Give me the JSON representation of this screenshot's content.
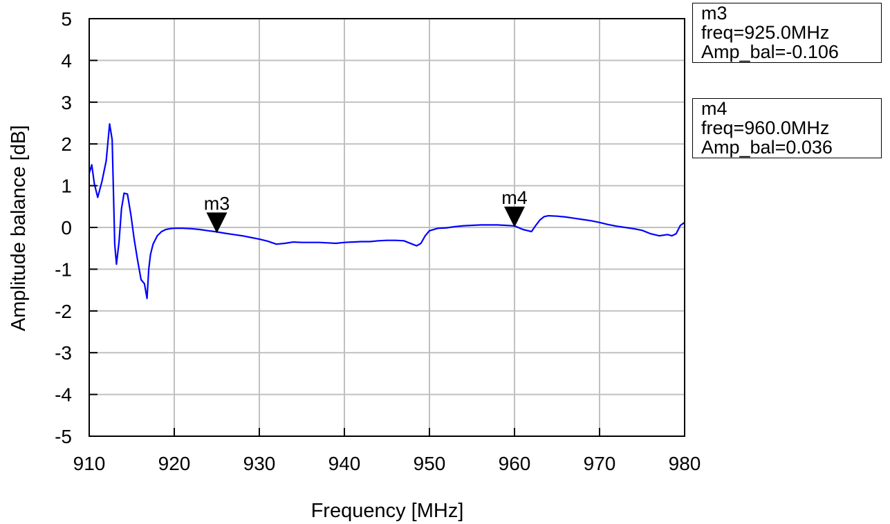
{
  "chart_data": {
    "type": "line",
    "title": "",
    "xlabel": "Frequency [MHz]",
    "ylabel": "Amplitude balance [dB]",
    "xlim": [
      910,
      980
    ],
    "ylim": [
      -5,
      5
    ],
    "x_ticks": [
      910,
      920,
      930,
      940,
      950,
      960,
      970,
      980
    ],
    "y_ticks": [
      -5,
      -4,
      -3,
      -2,
      -1,
      0,
      1,
      2,
      3,
      4,
      5
    ],
    "grid": true,
    "line_color": "#0000ff",
    "series": [
      {
        "x": [
          910.0,
          910.3,
          910.6,
          911.0,
          911.5,
          912.0,
          912.4,
          912.7,
          913.0,
          913.2,
          913.5,
          913.8,
          914.1,
          914.5,
          914.9,
          915.3,
          915.7,
          916.1,
          916.5,
          916.8,
          917.0,
          917.2,
          917.5,
          918.0,
          918.5,
          919.0,
          919.5,
          920.0,
          921.0,
          922.0,
          923.0,
          924.0,
          925.0,
          926.0,
          927.0,
          928.0,
          929.0,
          930.0,
          931.0,
          932.0,
          933.0,
          934.0,
          935.0,
          936.0,
          937.0,
          938.0,
          939.0,
          940.0,
          941.0,
          942.0,
          943.0,
          944.0,
          945.0,
          946.0,
          947.0,
          948.0,
          948.5,
          949.0,
          949.5,
          950.0,
          951.0,
          952.0,
          953.0,
          954.0,
          955.0,
          956.0,
          957.0,
          958.0,
          959.0,
          960.0,
          961.0,
          962.0,
          962.5,
          963.0,
          963.5,
          964.0,
          965.0,
          966.0,
          967.0,
          968.0,
          969.0,
          970.0,
          971.0,
          972.0,
          973.0,
          974.0,
          975.0,
          976.0,
          977.0,
          978.0,
          978.5,
          979.0,
          979.5,
          980.0
        ],
        "y": [
          1.3,
          1.5,
          1.05,
          0.72,
          1.1,
          1.6,
          2.48,
          2.1,
          -0.4,
          -0.88,
          -0.35,
          0.45,
          0.82,
          0.8,
          0.3,
          -0.3,
          -0.8,
          -1.25,
          -1.35,
          -1.7,
          -1.0,
          -0.65,
          -0.4,
          -0.2,
          -0.1,
          -0.05,
          -0.03,
          -0.02,
          -0.02,
          -0.03,
          -0.05,
          -0.08,
          -0.106,
          -0.14,
          -0.17,
          -0.2,
          -0.24,
          -0.28,
          -0.33,
          -0.4,
          -0.38,
          -0.35,
          -0.36,
          -0.36,
          -0.36,
          -0.37,
          -0.38,
          -0.36,
          -0.35,
          -0.34,
          -0.34,
          -0.32,
          -0.31,
          -0.31,
          -0.32,
          -0.4,
          -0.44,
          -0.38,
          -0.2,
          -0.08,
          -0.02,
          -0.01,
          0.02,
          0.04,
          0.05,
          0.06,
          0.06,
          0.06,
          0.05,
          0.036,
          -0.05,
          -0.1,
          0.05,
          0.18,
          0.26,
          0.28,
          0.27,
          0.25,
          0.22,
          0.19,
          0.16,
          0.12,
          0.07,
          0.03,
          0.0,
          -0.03,
          -0.07,
          -0.15,
          -0.2,
          -0.17,
          -0.2,
          -0.15,
          0.05,
          0.12
        ]
      }
    ],
    "markers": [
      {
        "name": "m3",
        "x": 925.0,
        "y": -0.106,
        "readout": [
          "m3",
          "freq=925.0MHz",
          "Amp_bal=-0.106"
        ]
      },
      {
        "name": "m4",
        "x": 960.0,
        "y": 0.036,
        "readout": [
          "m4",
          "freq=960.0MHz",
          "Amp_bal=0.036"
        ]
      }
    ]
  }
}
